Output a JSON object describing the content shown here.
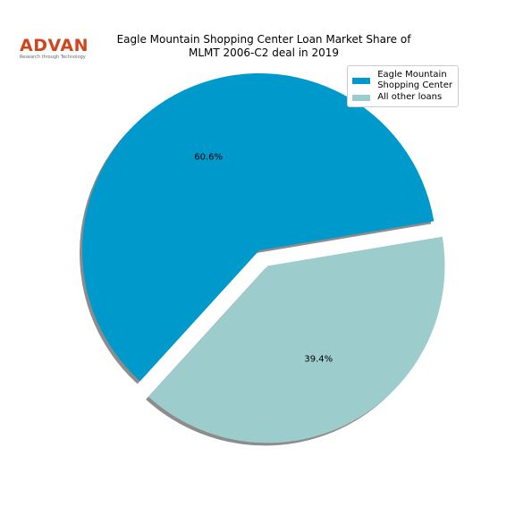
{
  "logo": {
    "text": "ADVAN",
    "tagline": "Research through Technology"
  },
  "chart_data": {
    "type": "pie",
    "title": "Eagle Mountain Shopping Center Loan Market Share of\nMLMT 2006-C2 deal in 2019",
    "categories": [
      "Eagle Mountain\nShopping Center",
      "All other loans"
    ],
    "values": [
      60.6,
      39.4
    ],
    "value_labels": [
      "60.6%",
      "39.4%"
    ],
    "colors": [
      "#0099cc",
      "#9dcccc"
    ],
    "explode": [
      0,
      0.1
    ],
    "shadow": true,
    "legend": "upper right"
  }
}
